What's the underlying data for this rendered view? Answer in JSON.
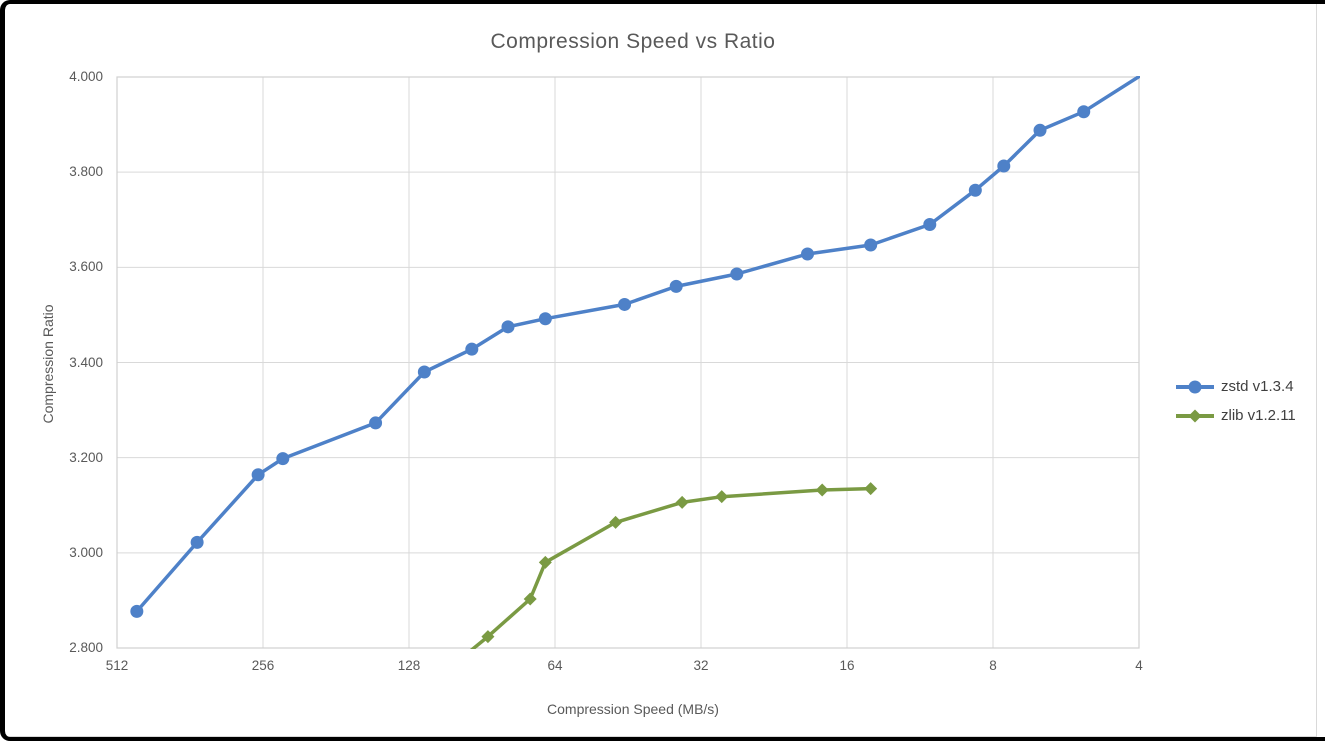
{
  "chart_data": {
    "type": "line",
    "title": "Compression Speed vs Ratio",
    "x_axis": {
      "label": "Compression Speed (MB/s)",
      "scale": "log2",
      "reversed": true,
      "min": 4,
      "max": 512,
      "ticks": [
        512,
        256,
        128,
        64,
        32,
        16,
        8,
        4
      ]
    },
    "y_axis": {
      "label": "Compression Ratio",
      "min": 2.8,
      "max": 4.0,
      "tick_step": 0.2,
      "ticks": [
        "4.000",
        "3.800",
        "3.600",
        "3.400",
        "3.200",
        "3.000",
        "2.800"
      ]
    },
    "grid": true,
    "legend_position": "right-middle",
    "series": [
      {
        "name": "zstd v1.3.4",
        "color": "#4e81c8",
        "marker": "circle",
        "points": [
          [
            466,
            2.877
          ],
          [
            350,
            3.022
          ],
          [
            262,
            3.164
          ],
          [
            233,
            3.198
          ],
          [
            150,
            3.273
          ],
          [
            119,
            3.38
          ],
          [
            95,
            3.428
          ],
          [
            80,
            3.475
          ],
          [
            67,
            3.492
          ],
          [
            46,
            3.522
          ],
          [
            36,
            3.56
          ],
          [
            27,
            3.586
          ],
          [
            19.3,
            3.628
          ],
          [
            14.3,
            3.647
          ],
          [
            10.8,
            3.69
          ],
          [
            8.7,
            3.762
          ],
          [
            7.6,
            3.813
          ],
          [
            6.4,
            3.888
          ],
          [
            5.2,
            3.927
          ],
          [
            3.9,
            4.008
          ]
        ],
        "note": "last point clipped at top-right corner of plot area"
      },
      {
        "name": "zlib v1.2.11",
        "color": "#7a9a43",
        "marker": "diamond",
        "points": [
          [
            110,
            2.743
          ],
          [
            88,
            2.824
          ],
          [
            72,
            2.903
          ],
          [
            67,
            2.98
          ],
          [
            48,
            3.064
          ],
          [
            35,
            3.106
          ],
          [
            29,
            3.118
          ],
          [
            18,
            3.132
          ],
          [
            14.3,
            3.135
          ]
        ],
        "note": "first point clipped below bottom axis; line enters from bottom edge"
      }
    ]
  },
  "styles": {
    "title_color": "#595959",
    "axis_text_color": "#595959",
    "legend_text_color": "#3f3f3f",
    "grid_color": "#d9d9d9",
    "plot_border_color": "#d0d0d0",
    "panel_border_color": "#d9d9d9",
    "frame_color": "#000000",
    "line_width": 3.5,
    "marker_size": 6.5
  }
}
